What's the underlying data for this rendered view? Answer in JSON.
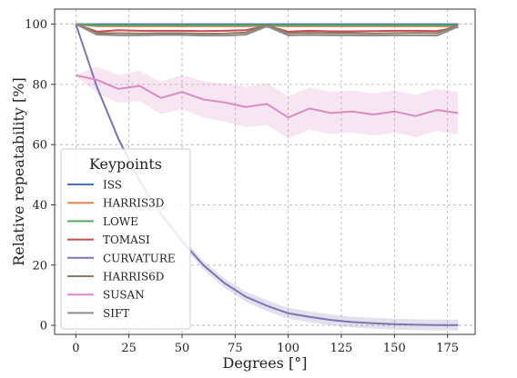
{
  "chart_data": {
    "type": "line",
    "xlabel": "Degrees [°]",
    "ylabel": "Relative repeatability [%]",
    "xlim": [
      -10,
      188
    ],
    "ylim": [
      -3,
      105
    ],
    "xticks": [
      0,
      25,
      50,
      75,
      100,
      125,
      150,
      175
    ],
    "yticks": [
      0,
      20,
      40,
      60,
      80,
      100
    ],
    "grid": true,
    "legend": {
      "title": "Keypoints",
      "placement": "lower-left"
    },
    "x": [
      0,
      10,
      20,
      30,
      40,
      50,
      60,
      70,
      80,
      90,
      100,
      110,
      120,
      130,
      140,
      150,
      160,
      170,
      180
    ],
    "series": [
      {
        "name": "ISS",
        "color": "#4c72b0",
        "values": [
          100,
          100,
          100,
          100,
          100,
          100,
          100,
          100,
          100,
          100,
          100,
          100,
          100,
          100,
          100,
          100,
          100,
          100,
          100
        ]
      },
      {
        "name": "HARRIS3D",
        "color": "#dd8452",
        "values": [
          100,
          99.3,
          99.3,
          99.3,
          99.3,
          99.3,
          99.3,
          99.3,
          99.3,
          99.5,
          99.3,
          99.3,
          99.3,
          99.3,
          99.3,
          99.3,
          99.3,
          99.3,
          99.3
        ]
      },
      {
        "name": "LOWE",
        "color": "#55a868",
        "values": [
          100,
          99.6,
          99.6,
          99.6,
          99.6,
          99.6,
          99.6,
          99.6,
          99.6,
          99.7,
          99.6,
          99.6,
          99.6,
          99.6,
          99.6,
          99.6,
          99.6,
          99.6,
          99.6
        ]
      },
      {
        "name": "TOMASI",
        "color": "#c44e52",
        "values": [
          100,
          97.5,
          98,
          97.8,
          97.8,
          97.8,
          97.7,
          97.8,
          98,
          99.5,
          97.5,
          97.8,
          97.6,
          97.6,
          97.7,
          97.8,
          97.8,
          97.7,
          99
        ]
      },
      {
        "name": "CURVATURE",
        "color": "#8172b3",
        "values": [
          100,
          79,
          62,
          48,
          37,
          28,
          20,
          14,
          9.5,
          6.5,
          4,
          2.8,
          1.8,
          1.1,
          0.7,
          0.4,
          0.2,
          0.1,
          0.1
        ]
      },
      {
        "name": "HARRIS6D",
        "color": "#937860",
        "values": [
          100,
          97,
          97,
          96.9,
          97,
          97,
          96.8,
          96.9,
          97.2,
          99.8,
          97,
          97.1,
          97,
          97,
          96.9,
          97,
          97.1,
          97,
          99.8
        ]
      },
      {
        "name": "SUSAN",
        "color": "#da8bc3",
        "values": [
          83,
          81.5,
          78.5,
          79.5,
          75.5,
          77.5,
          75,
          74,
          72.5,
          73.5,
          69,
          72,
          70.5,
          71,
          70,
          71,
          69.5,
          71.5,
          70.5
        ]
      },
      {
        "name": "SIFT",
        "color": "#8c8c8c",
        "values": [
          100,
          96.5,
          96.3,
          96.3,
          96.4,
          96.4,
          96.2,
          96.2,
          96.5,
          99.3,
          96.3,
          96.4,
          96.3,
          96.3,
          96.2,
          96.3,
          96.3,
          96.2,
          99.2
        ]
      }
    ]
  }
}
